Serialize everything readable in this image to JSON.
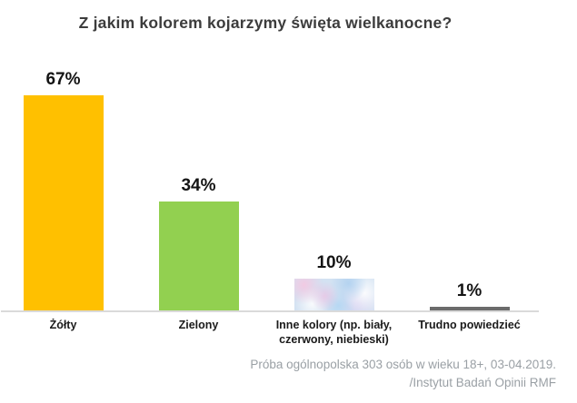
{
  "title": "Z jakim kolorem kojarzymy święta wielkanocne?",
  "source_note": {
    "line1": "Próba ogólnopolska 303 osób w wieku 18+, 03-04.2019.",
    "line2": "/Instytut Badań Opinii RMF"
  },
  "chart_data": {
    "type": "bar",
    "title": "Z jakim kolorem kojarzymy święta wielkanocne?",
    "categories": [
      "Żółty",
      "Zielony",
      "Inne kolory (np. biały, czerwony, niebieski)",
      "Trudno powiedzieć"
    ],
    "values": [
      67,
      34,
      10,
      1
    ],
    "value_labels": [
      "67%",
      "34%",
      "10%",
      "1%"
    ],
    "unit": "%",
    "ylim": [
      0,
      70
    ],
    "grid": false,
    "legend": false,
    "orientation": "vertical",
    "bar_colors": [
      "#FFC000",
      "#92D050",
      "speckled-pastel",
      "#6B6B6B"
    ]
  },
  "colors": {
    "background": "#FFFFFF",
    "title_text": "#3C3C3C",
    "value_label_text": "#141414",
    "category_label_text": "#1B1B1B",
    "axis_line": "#DADADA",
    "source_text": "#9AA0A5",
    "bar_yellow": "#FFC000",
    "bar_green": "#92D050",
    "bar_gray": "#6B6B6B",
    "bar_speckle_base": "#D3E2F2"
  }
}
